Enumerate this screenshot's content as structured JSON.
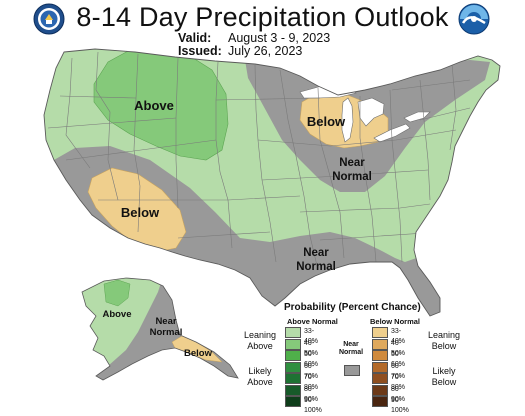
{
  "header": {
    "title": "8-14 Day Precipitation Outlook",
    "valid_label": "Valid:",
    "valid_value": "August 3 - 9, 2023",
    "issued_label": "Issued:",
    "issued_value": "July 26, 2023"
  },
  "logos": {
    "left": "doc-seal-icon",
    "right": "noaa-logo-icon"
  },
  "map_labels": {
    "above_nw": "Above",
    "below_great_lakes": "Below",
    "near_normal_ohio": "Near",
    "near_normal_ohio_2": "Normal",
    "below_sw": "Below",
    "near_normal_south": "Near",
    "near_normal_south_2": "Normal",
    "above_alaska": "Above",
    "near_normal_alaska": "Near",
    "near_normal_alaska_2": "Normal",
    "below_alaska": "Below"
  },
  "legend": {
    "title": "Probability (Percent Chance)",
    "above_header": "Above Normal",
    "below_header": "Below Normal",
    "near_header_1": "Near",
    "near_header_2": "Normal",
    "leaning_above_1": "Leaning",
    "leaning_above_2": "Above",
    "likely_above_1": "Likely",
    "likely_above_2": "Above",
    "leaning_below_1": "Leaning",
    "leaning_below_2": "Below",
    "likely_below_1": "Likely",
    "likely_below_2": "Below",
    "above_bins": [
      {
        "label": "33-40%",
        "color": "#b5dca9"
      },
      {
        "label": "40-50%",
        "color": "#85c97a"
      },
      {
        "label": "50-60%",
        "color": "#4fb04a"
      },
      {
        "label": "60-70%",
        "color": "#2f8f40"
      },
      {
        "label": "70-80%",
        "color": "#1e7233"
      },
      {
        "label": "80-90%",
        "color": "#175a29"
      },
      {
        "label": "90-100%",
        "color": "#0e3d1a"
      }
    ],
    "below_bins": [
      {
        "label": "33-40%",
        "color": "#efcf8d"
      },
      {
        "label": "40-50%",
        "color": "#dfa95d"
      },
      {
        "label": "50-60%",
        "color": "#cf8a3d"
      },
      {
        "label": "60-70%",
        "color": "#b36a2a"
      },
      {
        "label": "70-80%",
        "color": "#8f4f20"
      },
      {
        "label": "80-90%",
        "color": "#6d3a18"
      },
      {
        "label": "90-100%",
        "color": "#4a2510"
      }
    ],
    "near_color": "#999999"
  },
  "colors": {
    "above_33_40": "#b5dca9",
    "above_40_50": "#85c97a",
    "below_33_40": "#efcf8d",
    "near_normal": "#999999",
    "water": "#ffffff",
    "borders": "#6f6f6f"
  }
}
